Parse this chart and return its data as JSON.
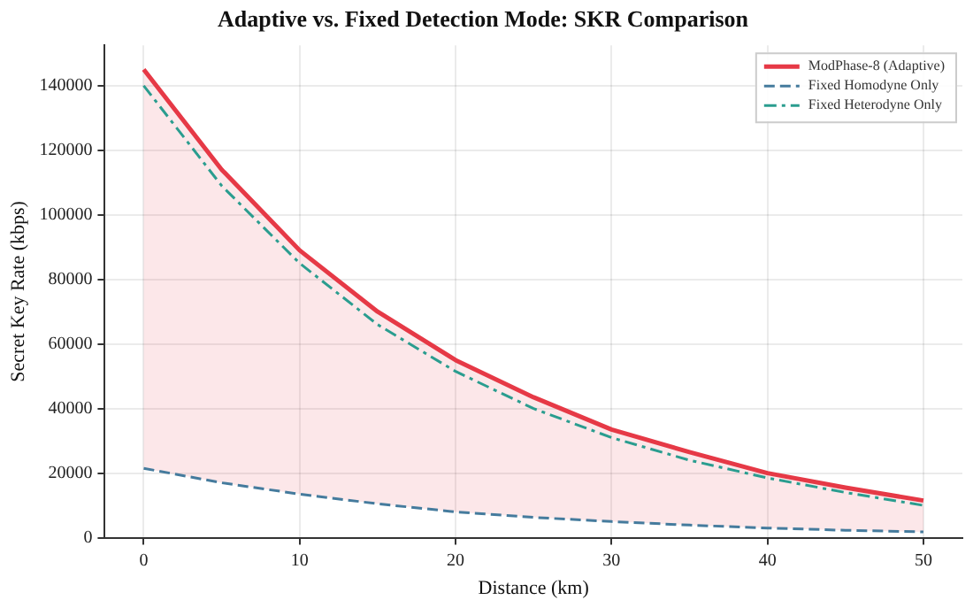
{
  "chart_data": {
    "type": "line",
    "title": "Adaptive vs. Fixed Detection Mode: SKR Comparison",
    "xlabel": "Distance (km)",
    "ylabel": "Secret Key Rate (kbps)",
    "x": [
      0,
      5,
      10,
      15,
      20,
      25,
      30,
      35,
      40,
      45,
      50
    ],
    "series": [
      {
        "name": "ModPhase-8 (Adaptive)",
        "color": "#e63946",
        "line_style": "solid",
        "values": [
          145000,
          114000,
          89000,
          70000,
          55000,
          43500,
          33500,
          26500,
          20000,
          15500,
          11500
        ],
        "lower": [
          21500,
          17000,
          13500,
          10500,
          8000,
          6300,
          5000,
          3900,
          3000,
          2300,
          1800
        ],
        "upper": [
          145000,
          114000,
          89000,
          70000,
          55000,
          43500,
          33500,
          26500,
          20000,
          15500,
          11500
        ]
      },
      {
        "name": "Fixed Homodyne Only",
        "color": "#457b9d",
        "line_style": "dashed",
        "values": [
          21500,
          17000,
          13500,
          10500,
          8000,
          6300,
          5000,
          3900,
          3000,
          2300,
          1800
        ]
      },
      {
        "name": "Fixed Heterodyne Only",
        "color": "#2a9d8f",
        "line_style": "dashdot",
        "values": [
          140000,
          109000,
          85000,
          66000,
          51500,
          40000,
          31000,
          24000,
          18500,
          14000,
          10000
        ]
      }
    ],
    "xlim": [
      -2.5,
      52.5
    ],
    "xticks": [
      0,
      10,
      20,
      30,
      40,
      50
    ],
    "ylim": [
      0,
      152500
    ],
    "yticks": [
      0,
      20000,
      40000,
      60000,
      80000,
      100000,
      120000,
      140000
    ],
    "grid": true,
    "legend": "top right",
    "marker": "none"
  }
}
